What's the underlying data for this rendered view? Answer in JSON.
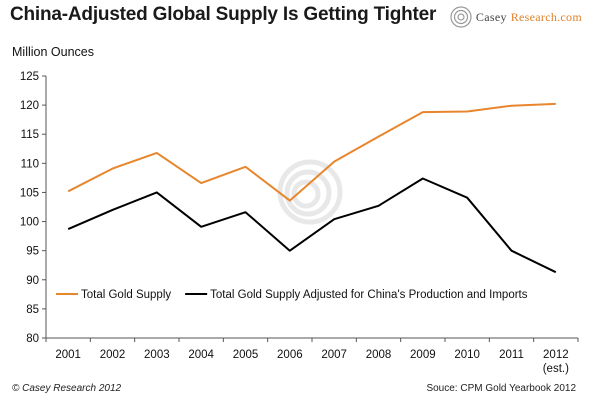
{
  "header": {
    "title": "China-Adjusted Global Supply Is Getting Tighter",
    "logo_text_main": "Casey ",
    "logo_text_accent": "Research.com"
  },
  "footer": {
    "copyright": "© Casey Research 2012",
    "source": "Souce: CPM Gold Yearbook 2012"
  },
  "colors": {
    "series_total": "#e8862e",
    "series_adjusted": "#000000",
    "axis": "#555555",
    "watermark": "#d9d9d9"
  },
  "chart_data": {
    "type": "line",
    "title": "China-Adjusted Global Supply Is Getting Tighter",
    "ylabel": "Million Ounces",
    "xlabel": "",
    "categories": [
      "2001",
      "2002",
      "2003",
      "2004",
      "2005",
      "2006",
      "2007",
      "2008",
      "2009",
      "2010",
      "2011",
      "2012"
    ],
    "category_sublabels": [
      "",
      "",
      "",
      "",
      "",
      "",
      "",
      "",
      "",
      "",
      "",
      "(est.)"
    ],
    "ylim": [
      80,
      125
    ],
    "yticks": [
      80,
      85,
      90,
      95,
      100,
      105,
      110,
      115,
      120,
      125
    ],
    "grid": false,
    "legend_position": "inside-lower",
    "series": [
      {
        "name": "Total Gold Supply",
        "color": "#e8862e",
        "values": [
          105.2,
          109.1,
          111.8,
          106.6,
          109.4,
          103.6,
          110.3,
          114.6,
          118.8,
          118.9,
          119.9,
          120.2
        ]
      },
      {
        "name": "Total Gold Supply Adjusted for China's Production and Imports",
        "color": "#000000",
        "values": [
          98.7,
          102.0,
          105.0,
          99.1,
          101.6,
          95.0,
          100.4,
          102.7,
          107.4,
          104.1,
          95.0,
          91.3
        ]
      }
    ]
  }
}
